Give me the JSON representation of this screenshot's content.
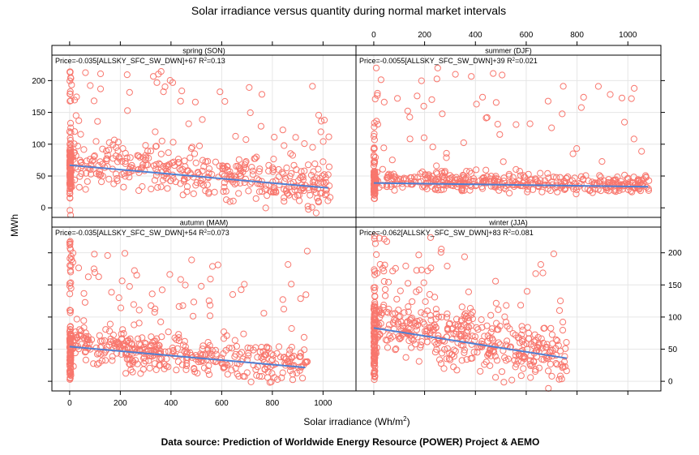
{
  "chart_data": {
    "type": "scatter",
    "title": "Solar irradiance versus quantity during normal market intervals",
    "xlabel": "Solar irradiance (Wh/m",
    "xlabel_sup": "2",
    "xlabel_close": ")",
    "ylabel": "MWh",
    "caption": "Data source: Prediction of Worldwide Energy Resource (POWER) Project & AEMO",
    "xlim": [
      -70,
      1130
    ],
    "ylim": [
      -15,
      240
    ],
    "x_ticks": [
      "0",
      "200",
      "400",
      "600",
      "800",
      "1000"
    ],
    "y_ticks": [
      "0",
      "50",
      "100",
      "150",
      "200"
    ],
    "grid": true,
    "point_color": "#F8766D",
    "line_color": "#4F7FD2",
    "panels": [
      {
        "name": "spring (SON)",
        "equation": "Price=-0.035[ALLSKY_SFC_SW_DWN]+67 R",
        "r2": "=0.13",
        "fit": {
          "slope": -0.035,
          "intercept": 67,
          "x_start": 0,
          "x_end": 1020
        },
        "cloud": {
          "x_max": 1030,
          "dense_center": 58,
          "dense_spread": 22,
          "outlier_max": 215,
          "spike_top": 220
        }
      },
      {
        "name": "summer (DJF)",
        "equation": "Price=-0.0055[ALLSKY_SFC_SW_DWN]+39 R",
        "r2": "=0.021",
        "fit": {
          "slope": -0.0055,
          "intercept": 39,
          "x_start": 0,
          "x_end": 1080
        },
        "cloud": {
          "x_max": 1085,
          "dense_center": 37,
          "dense_spread": 9,
          "outlier_max": 220,
          "spike_top": 135
        }
      },
      {
        "name": "autumn (MAM)",
        "equation": "Price=-0.035[ALLSKY_SFC_SW_DWN]+54 R",
        "r2": "=0.073",
        "fit": {
          "slope": -0.035,
          "intercept": 54,
          "x_start": 0,
          "x_end": 930
        },
        "cloud": {
          "x_max": 940,
          "dense_center": 45,
          "dense_spread": 18,
          "outlier_max": 205,
          "spike_top": 220
        }
      },
      {
        "name": "winter (JJA)",
        "equation": "Price=-0.062[ALLSKY_SFC_SW_DWN]+83 R",
        "r2": "=0.081",
        "fit": {
          "slope": -0.062,
          "intercept": 83,
          "x_start": 0,
          "x_end": 760
        },
        "cloud": {
          "x_max": 760,
          "dense_center": 60,
          "dense_spread": 28,
          "outlier_max": 225,
          "spike_top": 225
        }
      }
    ]
  }
}
